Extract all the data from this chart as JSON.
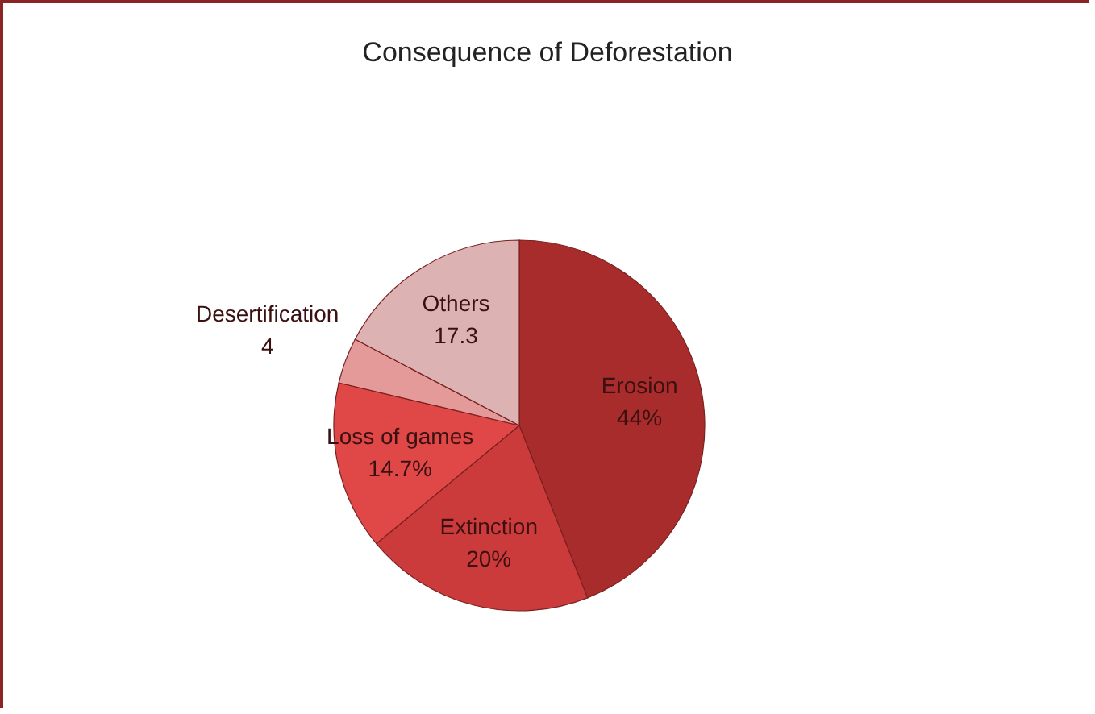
{
  "chart_data": {
    "type": "pie",
    "title": "Consequence of Deforestation",
    "categories": [
      "Erosion",
      "Extinction",
      "Loss of games",
      "Desertification",
      "Others"
    ],
    "values": [
      44,
      20,
      14.7,
      4,
      17.3
    ],
    "colors": [
      "#a92c2c",
      "#cc3b3b",
      "#e04848",
      "#e59a9a",
      "#dcb2b2"
    ],
    "value_labels": [
      "44%",
      "20%",
      "14.7%",
      "4",
      "17.3"
    ]
  }
}
